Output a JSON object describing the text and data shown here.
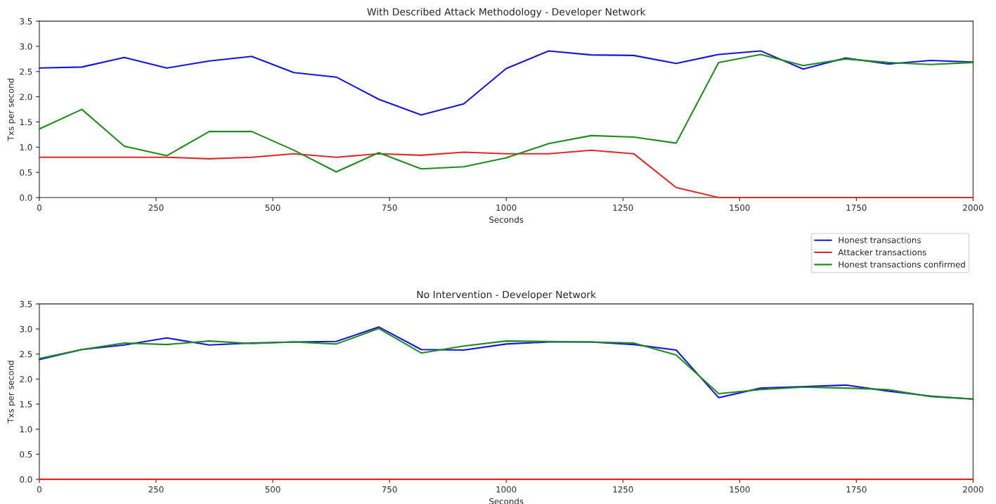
{
  "chart_data": [
    {
      "type": "line",
      "title": "With Described Attack Methodology - Developer Network",
      "xlabel": "Seconds",
      "ylabel": "Txs per second",
      "x": [
        0,
        91,
        182,
        273,
        364,
        455,
        545,
        636,
        727,
        818,
        909,
        1000,
        1091,
        1182,
        1273,
        1364,
        1455,
        1545,
        1636,
        1727,
        1818,
        1909,
        2000
      ],
      "series": [
        {
          "name": "Honest transactions",
          "color": "#1515dd",
          "values": [
            2.57,
            2.59,
            2.78,
            2.57,
            2.71,
            2.8,
            2.48,
            2.39,
            1.95,
            1.64,
            1.86,
            2.56,
            2.91,
            2.83,
            2.82,
            2.66,
            2.84,
            2.91,
            2.55,
            2.77,
            2.65,
            2.72,
            2.69
          ]
        },
        {
          "name": "Attacker transactions",
          "color": "#dd2a2a",
          "values": [
            0.8,
            0.8,
            0.8,
            0.8,
            0.77,
            0.8,
            0.87,
            0.8,
            0.87,
            0.84,
            0.9,
            0.87,
            0.87,
            0.94,
            0.87,
            0.2,
            0,
            0,
            0,
            0,
            0,
            0,
            0
          ]
        },
        {
          "name": "Honest transactions confirmed",
          "color": "#1e8c1e",
          "values": [
            1.36,
            1.75,
            1.02,
            0.83,
            1.31,
            1.31,
            0.94,
            0.51,
            0.89,
            0.57,
            0.61,
            0.79,
            1.07,
            1.23,
            1.2,
            1.08,
            2.68,
            2.84,
            2.62,
            2.75,
            2.68,
            2.64,
            2.68
          ]
        }
      ],
      "xlim": [
        0,
        2000
      ],
      "xticks": [
        0,
        250,
        500,
        750,
        1000,
        1250,
        1500,
        1750,
        2000
      ],
      "ylim": [
        0,
        3.5
      ],
      "yticks": [
        {
          "value": 0,
          "label": "0.0"
        },
        0.5,
        {
          "value": 1,
          "label": "1.0"
        },
        1.5,
        {
          "value": 2,
          "label": "2.0"
        },
        2.5,
        {
          "value": 3,
          "label": "3.0"
        },
        3.5
      ],
      "legend": "bottom right",
      "grid": false
    },
    {
      "type": "line",
      "title": "No Intervention - Developer Network",
      "xlabel": "Seconds",
      "ylabel": "Txs per second",
      "x": [
        0,
        91,
        182,
        273,
        364,
        455,
        545,
        636,
        727,
        818,
        909,
        1000,
        1091,
        1182,
        1273,
        1364,
        1455,
        1545,
        1636,
        1727,
        1818,
        1909,
        2000
      ],
      "series": [
        {
          "color": "#1515dd",
          "values": [
            2.39,
            2.59,
            2.68,
            2.82,
            2.68,
            2.72,
            2.74,
            2.75,
            3.04,
            2.59,
            2.58,
            2.7,
            2.74,
            2.74,
            2.69,
            2.58,
            1.63,
            1.82,
            1.85,
            1.88,
            1.76,
            1.66,
            1.6
          ]
        },
        {
          "color": "#dd2a2a",
          "values": [
            0,
            0,
            0,
            0,
            0,
            0,
            0,
            0,
            0,
            0,
            0,
            0,
            0,
            0,
            0,
            0,
            0,
            0,
            0,
            0,
            0,
            0,
            0
          ]
        },
        {
          "color": "#1e8c1e",
          "values": [
            2.41,
            2.59,
            2.72,
            2.69,
            2.76,
            2.71,
            2.74,
            2.7,
            3.01,
            2.52,
            2.66,
            2.76,
            2.75,
            2.74,
            2.72,
            2.48,
            1.71,
            1.79,
            1.84,
            1.82,
            1.79,
            1.65,
            1.6
          ]
        }
      ],
      "xlim": [
        0,
        2000
      ],
      "xticks": [
        0,
        250,
        500,
        750,
        1000,
        1250,
        1500,
        1750,
        2000
      ],
      "ylim": [
        0,
        3.5
      ],
      "yticks": [
        {
          "value": 0,
          "label": "0.0"
        },
        0.5,
        {
          "value": 1,
          "label": "1.0"
        },
        1.5,
        {
          "value": 2,
          "label": "2.0"
        },
        2.5,
        {
          "value": 3,
          "label": "3.0"
        },
        3.5
      ],
      "grid": false
    }
  ]
}
